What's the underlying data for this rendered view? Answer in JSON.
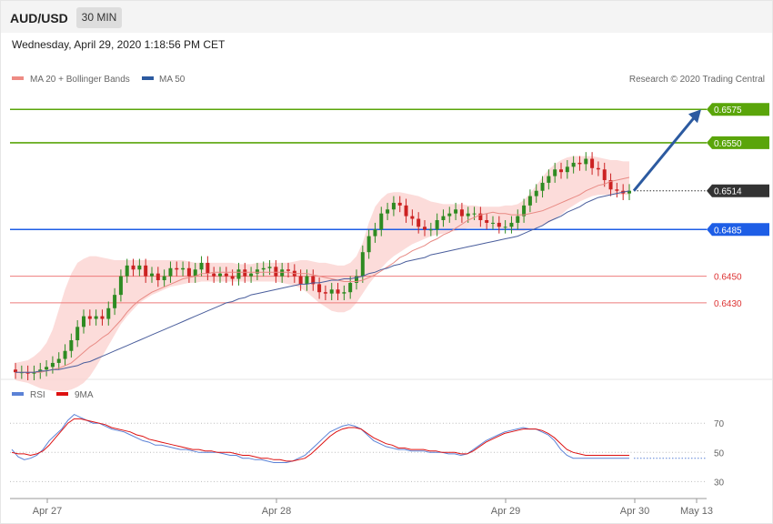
{
  "header": {
    "symbol": "AUD/USD",
    "timeframe": "30 MIN"
  },
  "datetime": "Wednesday, April 29, 2020 1:18:56 PM CET",
  "legend": {
    "ma20": "MA 20 + Bollinger Bands",
    "ma50": "MA 50",
    "credit": "Research © 2020 Trading Central",
    "rsi": "RSI",
    "rsi_ma": "9MA"
  },
  "colors": {
    "candle_up": "#2e8b22",
    "candle_down": "#cc2222",
    "band_fill": "#fbd0cd",
    "ma20": "#e88a84",
    "ma50": "#4a5e9c",
    "resistance": "#5aa50a",
    "pivot": "#1e5ee6",
    "support": "#ee7b7b",
    "arrow": "#2c5aa0",
    "rsi": "#5b82d6",
    "rsi_ma": "#dd1111"
  },
  "chart_data": [
    {
      "type": "candlestick",
      "title": "AUD/USD 30 MIN",
      "ylim": [
        0.63795,
        0.65888
      ],
      "x_ticks": [
        "Apr 27",
        "Apr 28",
        "Apr 29",
        "Apr 30",
        "May 13"
      ],
      "last_price": 0.6514,
      "levels": [
        {
          "label": "0.6575",
          "value": 0.6575,
          "kind": "resistance"
        },
        {
          "label": "0.6550",
          "value": 0.655,
          "kind": "resistance"
        },
        {
          "label": "0.6485",
          "value": 0.6485,
          "kind": "pivot"
        },
        {
          "label": "0.6450",
          "value": 0.645,
          "kind": "support"
        },
        {
          "label": "0.6430",
          "value": 0.643,
          "kind": "support"
        }
      ],
      "price_labels": [
        {
          "label": "0.6575",
          "value": 0.6575,
          "kind": "resistance"
        },
        {
          "label": "0.6550",
          "value": 0.655,
          "kind": "resistance"
        },
        {
          "label": "0.6514",
          "value": 0.6514,
          "kind": "last"
        },
        {
          "label": "0.6485",
          "value": 0.6485,
          "kind": "pivot"
        },
        {
          "label": "0.6450",
          "value": 0.645,
          "kind": "support"
        },
        {
          "label": "0.6430",
          "value": 0.643,
          "kind": "support"
        }
      ],
      "close": [
        0.6378,
        0.6378,
        0.6377,
        0.6378,
        0.638,
        0.6382,
        0.6385,
        0.6388,
        0.6394,
        0.6402,
        0.6412,
        0.642,
        0.6418,
        0.642,
        0.6418,
        0.6426,
        0.6436,
        0.645,
        0.6458,
        0.6455,
        0.6458,
        0.645,
        0.6452,
        0.6447,
        0.645,
        0.6456,
        0.6455,
        0.6456,
        0.645,
        0.6455,
        0.646,
        0.6452,
        0.645,
        0.6452,
        0.645,
        0.6448,
        0.6455,
        0.645,
        0.6452,
        0.6455,
        0.6456,
        0.6457,
        0.645,
        0.6455,
        0.6454,
        0.645,
        0.6444,
        0.645,
        0.6444,
        0.6438,
        0.6437,
        0.644,
        0.6437,
        0.6438,
        0.6445,
        0.645,
        0.6468,
        0.648,
        0.6485,
        0.6497,
        0.65,
        0.6505,
        0.6503,
        0.6495,
        0.6493,
        0.6487,
        0.6485,
        0.6485,
        0.6492,
        0.6495,
        0.6497,
        0.65,
        0.6495,
        0.6497,
        0.6497,
        0.6492,
        0.649,
        0.649,
        0.6487,
        0.6487,
        0.649,
        0.6495,
        0.6503,
        0.651,
        0.6514,
        0.652,
        0.6525,
        0.653,
        0.6528,
        0.6532,
        0.6535,
        0.6534,
        0.6538,
        0.6531,
        0.653,
        0.6522,
        0.6515,
        0.6514,
        0.6512,
        0.6514
      ],
      "ma20": [
        0.6378,
        0.6378,
        0.6378,
        0.6378,
        0.6378,
        0.6379,
        0.638,
        0.6381,
        0.6383,
        0.6385,
        0.6389,
        0.6393,
        0.6397,
        0.64,
        0.6404,
        0.6407,
        0.6412,
        0.6417,
        0.6423,
        0.6428,
        0.6432,
        0.6435,
        0.6438,
        0.644,
        0.6442,
        0.6444,
        0.6446,
        0.6448,
        0.6449,
        0.645,
        0.6452,
        0.6452,
        0.6453,
        0.6453,
        0.6453,
        0.6453,
        0.6453,
        0.6453,
        0.6453,
        0.6453,
        0.6453,
        0.6453,
        0.6453,
        0.6453,
        0.6453,
        0.6452,
        0.6452,
        0.6452,
        0.6451,
        0.645,
        0.6449,
        0.6448,
        0.6447,
        0.6446,
        0.6446,
        0.6446,
        0.6447,
        0.6449,
        0.6451,
        0.6454,
        0.6457,
        0.646,
        0.6464,
        0.6466,
        0.6469,
        0.6471,
        0.6473,
        0.6476,
        0.6478,
        0.6481,
        0.6483,
        0.6486,
        0.6489,
        0.6492,
        0.6494,
        0.6496,
        0.6497,
        0.6498,
        0.6497,
        0.6497,
        0.6496,
        0.6496,
        0.6496,
        0.6497,
        0.6498,
        0.6499,
        0.6501,
        0.6503,
        0.6505,
        0.6507,
        0.6509,
        0.6511,
        0.6514,
        0.6516,
        0.6518,
        0.6519,
        0.6521,
        0.6522,
        0.6523,
        0.6524
      ],
      "ma50": [
        0.6378,
        0.6378,
        0.6378,
        0.6378,
        0.6379,
        0.6379,
        0.638,
        0.638,
        0.6381,
        0.6382,
        0.6383,
        0.6385,
        0.6386,
        0.6388,
        0.639,
        0.6392,
        0.6394,
        0.6396,
        0.6398,
        0.64,
        0.6402,
        0.6404,
        0.6406,
        0.6408,
        0.641,
        0.6412,
        0.6414,
        0.6416,
        0.6418,
        0.642,
        0.6422,
        0.6424,
        0.6426,
        0.6428,
        0.643,
        0.6431,
        0.6433,
        0.6434,
        0.6436,
        0.6437,
        0.6438,
        0.6439,
        0.644,
        0.6441,
        0.6442,
        0.6443,
        0.6444,
        0.6444,
        0.6445,
        0.6445,
        0.6446,
        0.6447,
        0.6447,
        0.6448,
        0.6448,
        0.6449,
        0.645,
        0.6452,
        0.6453,
        0.6455,
        0.6456,
        0.6458,
        0.6459,
        0.6461,
        0.6462,
        0.6463,
        0.6464,
        0.6466,
        0.6467,
        0.6468,
        0.6469,
        0.647,
        0.6471,
        0.6472,
        0.6473,
        0.6474,
        0.6475,
        0.6476,
        0.6477,
        0.6478,
        0.6479,
        0.648,
        0.6482,
        0.6484,
        0.6486,
        0.6488,
        0.6491,
        0.6493,
        0.6495,
        0.6498,
        0.65,
        0.6502,
        0.6505,
        0.6507,
        0.6509,
        0.651,
        0.6511,
        0.6512,
        0.6513,
        0.6514
      ],
      "band_upper": [
        0.6385,
        0.6386,
        0.6387,
        0.639,
        0.6394,
        0.64,
        0.641,
        0.6425,
        0.644,
        0.6452,
        0.646,
        0.6463,
        0.6465,
        0.6465,
        0.6464,
        0.6463,
        0.6462,
        0.6462,
        0.6462,
        0.6462,
        0.6462,
        0.6462,
        0.6462,
        0.6462,
        0.6462,
        0.6462,
        0.6462,
        0.6462,
        0.6461,
        0.646,
        0.646,
        0.646,
        0.646,
        0.646,
        0.646,
        0.646,
        0.6459,
        0.6459,
        0.6459,
        0.646,
        0.646,
        0.646,
        0.646,
        0.646,
        0.646,
        0.6461,
        0.6462,
        0.6462,
        0.6461,
        0.646,
        0.646,
        0.6459,
        0.6458,
        0.6458,
        0.646,
        0.6465,
        0.6475,
        0.649,
        0.6502,
        0.6508,
        0.6512,
        0.6513,
        0.6513,
        0.6512,
        0.6511,
        0.651,
        0.6508,
        0.6506,
        0.6505,
        0.6504,
        0.6504,
        0.6504,
        0.6504,
        0.6503,
        0.6503,
        0.6502,
        0.6502,
        0.6502,
        0.6502,
        0.6503,
        0.6503,
        0.6504,
        0.6507,
        0.6512,
        0.6518,
        0.6524,
        0.653,
        0.6534,
        0.6537,
        0.6539,
        0.654,
        0.654,
        0.654,
        0.654,
        0.6539,
        0.6538,
        0.6537,
        0.6537,
        0.6536,
        0.6536
      ],
      "band_lower": [
        0.6372,
        0.6371,
        0.637,
        0.6368,
        0.6366,
        0.6365,
        0.6364,
        0.6364,
        0.6364,
        0.6365,
        0.6367,
        0.637,
        0.6375,
        0.6382,
        0.639,
        0.6398,
        0.6406,
        0.6414,
        0.642,
        0.6425,
        0.643,
        0.6433,
        0.6436,
        0.6438,
        0.644,
        0.6442,
        0.6443,
        0.6444,
        0.6445,
        0.6445,
        0.6446,
        0.6446,
        0.6446,
        0.6446,
        0.6446,
        0.6446,
        0.6446,
        0.6446,
        0.6446,
        0.6446,
        0.6446,
        0.6446,
        0.6446,
        0.6445,
        0.6444,
        0.6443,
        0.6441,
        0.6438,
        0.6434,
        0.643,
        0.6427,
        0.6424,
        0.6423,
        0.6423,
        0.6425,
        0.643,
        0.6437,
        0.6444,
        0.645,
        0.6456,
        0.6461,
        0.6465,
        0.6468,
        0.6471,
        0.6474,
        0.6476,
        0.6478,
        0.648,
        0.6481,
        0.6482,
        0.6483,
        0.6484,
        0.6485,
        0.6486,
        0.6486,
        0.6486,
        0.6486,
        0.6486,
        0.6486,
        0.6485,
        0.6484,
        0.6484,
        0.6484,
        0.6485,
        0.6486,
        0.6488,
        0.649,
        0.6493,
        0.6496,
        0.65,
        0.6503,
        0.6506,
        0.6508,
        0.651,
        0.6511,
        0.6511,
        0.6511,
        0.6511,
        0.6511,
        0.6511
      ],
      "forecast_arrow": {
        "from": 0.6514,
        "to": 0.6575
      }
    },
    {
      "type": "line",
      "title": "RSI",
      "ylim": [
        20.9,
        83.2
      ],
      "y_ticks": [
        30,
        50,
        70
      ],
      "series": [
        {
          "name": "RSI",
          "values": [
            52,
            47,
            45,
            46,
            48,
            52,
            58,
            62,
            66,
            72,
            76,
            74,
            72,
            70,
            70,
            68,
            66,
            65,
            64,
            62,
            60,
            58,
            57,
            55,
            55,
            54,
            53,
            52,
            52,
            51,
            50,
            50,
            50,
            50,
            49,
            48,
            48,
            46,
            46,
            45,
            45,
            44,
            43,
            43,
            43,
            44,
            46,
            48,
            52,
            56,
            60,
            64,
            66,
            68,
            69,
            68,
            66,
            62,
            58,
            56,
            54,
            53,
            52,
            52,
            51,
            51,
            51,
            50,
            50,
            50,
            49,
            49,
            48,
            49,
            52,
            55,
            58,
            60,
            62,
            64,
            65,
            66,
            67,
            66,
            66,
            64,
            62,
            58,
            52,
            48,
            46,
            46,
            46,
            46,
            46,
            46,
            46,
            46,
            46,
            46
          ]
        },
        {
          "name": "9MA",
          "values": [
            50,
            49,
            49,
            48,
            49,
            51,
            55,
            60,
            65,
            70,
            73,
            73,
            72,
            71,
            70,
            69,
            67,
            66,
            65,
            64,
            62,
            61,
            59,
            58,
            57,
            56,
            55,
            54,
            53,
            52,
            52,
            51,
            51,
            50,
            50,
            50,
            49,
            48,
            48,
            47,
            46,
            46,
            45,
            45,
            44,
            44,
            45,
            46,
            49,
            53,
            57,
            61,
            64,
            66,
            67,
            67,
            66,
            63,
            60,
            58,
            56,
            55,
            53,
            53,
            52,
            52,
            52,
            51,
            51,
            50,
            50,
            50,
            49,
            49,
            51,
            54,
            57,
            59,
            61,
            63,
            64,
            65,
            66,
            66,
            66,
            65,
            63,
            60,
            56,
            52,
            50,
            49,
            48,
            48,
            48,
            48,
            48,
            48,
            48,
            48
          ]
        }
      ]
    }
  ]
}
